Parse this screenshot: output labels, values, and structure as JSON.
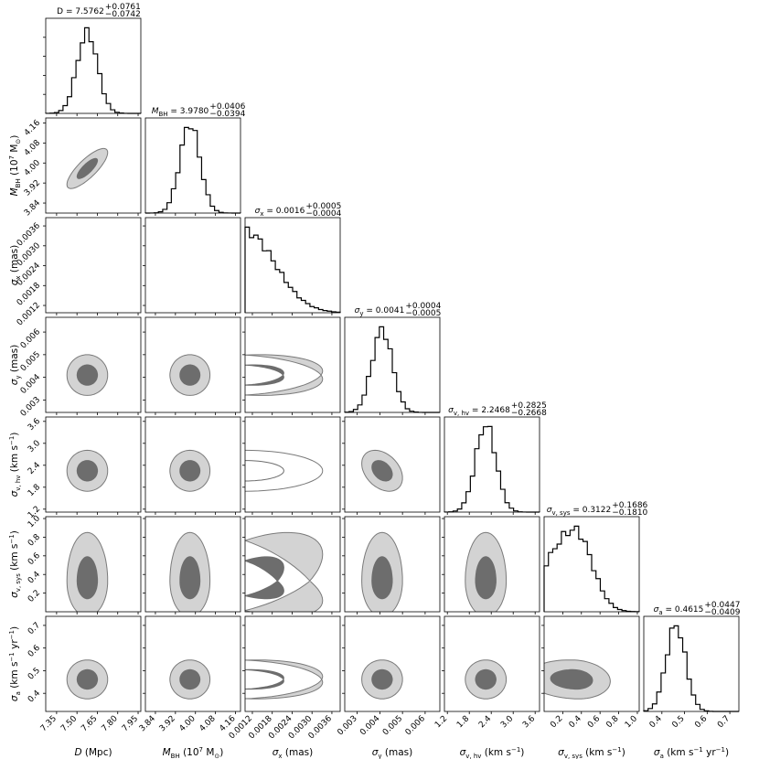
{
  "chart_data": {
    "type": "corner",
    "params": [
      {
        "key": "D",
        "label": "D (Mpc)",
        "label_parts": [
          [
            "D",
            "i"
          ],
          [
            " (Mpc)",
            ""
          ]
        ],
        "title_parts": [
          [
            "D = 7.5762",
            ""
          ]
        ],
        "plus": "+0.0761",
        "minus": "−0.0742",
        "range": [
          7.27,
          7.97
        ],
        "ticks": [
          7.35,
          7.5,
          7.65,
          7.8,
          7.95
        ],
        "tick_labels": [
          "7.35",
          "7.50",
          "7.65",
          "7.80",
          "7.95"
        ],
        "mean": 7.576,
        "sd": 0.075,
        "hist": "normal"
      },
      {
        "key": "M_BH",
        "label": "M_BH (10^7 M_⊙)",
        "label_parts": [
          [
            "M",
            "i"
          ],
          [
            "BH",
            "sub"
          ],
          [
            " (10",
            ""
          ],
          [
            "7",
            "sup"
          ],
          [
            " M",
            ""
          ],
          [
            "⊙",
            "sub"
          ],
          [
            ")",
            ""
          ]
        ],
        "title_parts": [
          [
            "M",
            "i"
          ],
          [
            "BH",
            "sub"
          ],
          [
            " = 3.9780",
            ""
          ]
        ],
        "plus": "+0.0406",
        "minus": "−0.0394",
        "range": [
          3.8,
          4.18
        ],
        "ticks": [
          3.84,
          3.92,
          4.0,
          4.08,
          4.16
        ],
        "tick_labels": [
          "3.84",
          "3.92",
          "4.00",
          "4.08",
          "4.16"
        ],
        "mean": 3.978,
        "sd": 0.04,
        "hist": "normal"
      },
      {
        "key": "sigma_x",
        "label": "σ_x (mas)",
        "label_parts": [
          [
            "σ",
            "i"
          ],
          [
            "x",
            "sub"
          ],
          [
            " (mas)",
            ""
          ]
        ],
        "title_parts": [
          [
            "σ",
            "i"
          ],
          [
            "x",
            "sub"
          ],
          [
            " = 0.0016",
            ""
          ]
        ],
        "plus": "+0.0005",
        "minus": "−0.0004",
        "range": [
          0.00098,
          0.00385
        ],
        "ticks": [
          0.0012,
          0.0018,
          0.0024,
          0.003,
          0.0036
        ],
        "tick_labels": [
          "0.0012",
          "0.0018",
          "0.0024",
          "0.0030",
          "0.0036"
        ],
        "mean": 0.00098,
        "sd": 0.0009,
        "hist": "half"
      },
      {
        "key": "sigma_y",
        "label": "σ_y (mas)",
        "label_parts": [
          [
            "σ",
            "i"
          ],
          [
            "y",
            "sub"
          ],
          [
            " (mas)",
            ""
          ]
        ],
        "title_parts": [
          [
            "σ",
            "i"
          ],
          [
            "y",
            "sub"
          ],
          [
            " = 0.0041",
            ""
          ]
        ],
        "plus": "+0.0004",
        "minus": "−0.0005",
        "range": [
          0.00245,
          0.00665
        ],
        "ticks": [
          0.003,
          0.004,
          0.005,
          0.006
        ],
        "tick_labels": [
          "0.003",
          "0.004",
          "0.005",
          "0.006"
        ],
        "mean": 0.0041,
        "sd": 0.00045,
        "hist": "normal"
      },
      {
        "key": "sigma_v_hv",
        "label": "σ_v,hv (km s^-1)",
        "label_parts": [
          [
            "σ",
            "i"
          ],
          [
            "v, hv",
            "sub"
          ],
          [
            " (km s",
            ""
          ],
          [
            "−1",
            "sup"
          ],
          [
            ")",
            ""
          ]
        ],
        "title_parts": [
          [
            "σ",
            "i"
          ],
          [
            "v, hv",
            "sub"
          ],
          [
            " = 2.2468",
            ""
          ]
        ],
        "plus": "+0.2825",
        "minus": "−0.2668",
        "range": [
          1.12,
          3.72
        ],
        "ticks": [
          1.2,
          1.8,
          2.4,
          3.0,
          3.6
        ],
        "tick_labels": [
          "1.2",
          "1.8",
          "2.4",
          "3.0",
          "3.6"
        ],
        "mean": 2.25,
        "sd": 0.28,
        "hist": "normal"
      },
      {
        "key": "sigma_v_sys",
        "label": "σ_v,sys (km s^-1)",
        "label_parts": [
          [
            "σ",
            "i"
          ],
          [
            "v, sys",
            "sub"
          ],
          [
            " (km s",
            ""
          ],
          [
            "−1",
            "sup"
          ],
          [
            ")",
            ""
          ]
        ],
        "title_parts": [
          [
            "σ",
            "i"
          ],
          [
            "v, sys",
            "sub"
          ],
          [
            " = 0.3122",
            ""
          ]
        ],
        "plus": "+0.1686",
        "minus": "−0.1810",
        "range": [
          0.0,
          1.02
        ],
        "ticks": [
          0.2,
          0.4,
          0.6,
          0.8,
          1.0
        ],
        "tick_labels": [
          "0.2",
          "0.4",
          "0.6",
          "0.8",
          "1.0"
        ],
        "mean": 0.33,
        "sd": 0.2,
        "hist": "skew"
      },
      {
        "key": "sigma_a",
        "label": "σ_a (km s^-1 yr^-1)",
        "label_parts": [
          [
            "σ",
            "i"
          ],
          [
            "a",
            "sub"
          ],
          [
            " (km s",
            ""
          ],
          [
            "−1",
            "sup"
          ],
          [
            " yr",
            ""
          ],
          [
            "−1",
            "sup"
          ],
          [
            ")",
            ""
          ]
        ],
        "title_parts": [
          [
            "σ",
            "i"
          ],
          [
            "a",
            "sub"
          ],
          [
            " = 0.4615",
            ""
          ]
        ],
        "plus": "+0.0447",
        "minus": "−0.0409",
        "range": [
          0.32,
          0.74
        ],
        "ticks": [
          0.4,
          0.5,
          0.6,
          0.7
        ],
        "tick_labels": [
          "0.4",
          "0.5",
          "0.6",
          "0.7"
        ],
        "mean": 0.4615,
        "sd": 0.043,
        "hist": "normal"
      }
    ],
    "correlations": {
      "1_0": 0.8,
      "3_2": -0.2,
      "4_3": -0.35,
      "5_2": -0.55,
      "6_2": -0.15,
      "6_5": -0.1
    },
    "contour_levels": [
      "1σ",
      "2σ"
    ],
    "colors": {
      "outer_fill": "#d3d3d3",
      "inner_fill": "#6d6d6d",
      "contour_edge": "#7a7a7a",
      "histogram": "#000000"
    }
  }
}
